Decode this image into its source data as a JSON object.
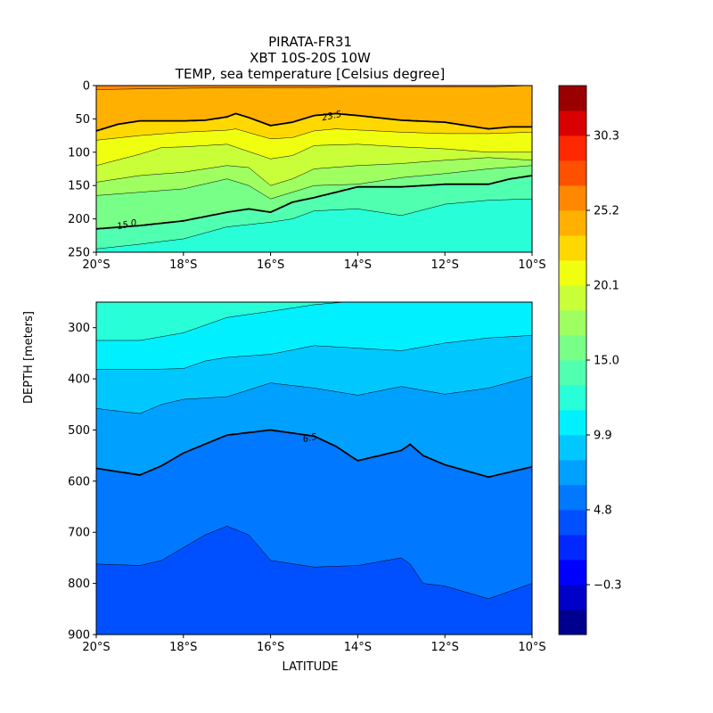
{
  "chart_data": {
    "type": "heatmap",
    "title_lines": [
      "PIRATA-FR31",
      "XBT 10S-20S 10W",
      "TEMP, sea temperature [Celsius degree]"
    ],
    "xlabel": "LATITUDE",
    "ylabel": "DEPTH [meters]",
    "x_range": [
      -20,
      -10
    ],
    "x_ticks": [
      -20,
      -18,
      -16,
      -14,
      -12,
      -10
    ],
    "x_tick_labels": [
      "20°S",
      "18°S",
      "16°S",
      "14°S",
      "12°S",
      "10°S"
    ],
    "panels": [
      {
        "name": "upper",
        "y_range": [
          0,
          250
        ],
        "y_ticks": [
          0,
          50,
          100,
          150,
          200,
          250
        ],
        "y_tick_labels": [
          "0",
          "50",
          "100",
          "150",
          "200",
          "250"
        ]
      },
      {
        "name": "lower",
        "y_range": [
          250,
          900
        ],
        "y_ticks": [
          300,
          400,
          500,
          600,
          700,
          800,
          900
        ],
        "y_tick_labels": [
          "300",
          "400",
          "500",
          "600",
          "700",
          "800",
          "900"
        ]
      }
    ],
    "colorbar": {
      "vmin": -2.0,
      "vmax": 32.0,
      "levels": 20,
      "colors": [
        "#00008f",
        "#0000c8",
        "#0000ff",
        "#0028ff",
        "#0050ff",
        "#0078ff",
        "#00a0ff",
        "#00c8ff",
        "#00f0ff",
        "#28ffd8",
        "#50ffb0",
        "#78ff88",
        "#a0ff60",
        "#c8ff38",
        "#f0ff10",
        "#ffd800",
        "#ffb000",
        "#ff8800",
        "#ff5000",
        "#ff2800",
        "#d80000",
        "#9a0000"
      ],
      "tick_values": [
        -0.3,
        4.8,
        9.9,
        15.0,
        20.1,
        25.2,
        30.3
      ],
      "tick_labels": [
        "−0.3",
        "4.8",
        "9.9",
        "15.0",
        "20.1",
        "25.2",
        "30.3"
      ]
    },
    "contour_labels": [
      {
        "text": "23.5",
        "lat": -14.6,
        "depth": 45
      },
      {
        "text": "15.0",
        "lat": -19.3,
        "depth": 208
      },
      {
        "text": "6.5",
        "lat": -15.1,
        "depth": 515
      }
    ],
    "isotherms": [
      {
        "temp": 25.2,
        "bold": false,
        "points": [
          [
            -20,
            6
          ],
          [
            -19,
            5
          ],
          [
            -18,
            4
          ],
          [
            -16,
            3
          ],
          [
            -15,
            3
          ],
          [
            -14,
            2
          ],
          [
            -12,
            2
          ],
          [
            -11,
            2
          ],
          [
            -10,
            0
          ]
        ]
      },
      {
        "temp": 23.5,
        "bold": true,
        "points": [
          [
            -20,
            68
          ],
          [
            -19.5,
            58
          ],
          [
            -19,
            53
          ],
          [
            -18,
            53
          ],
          [
            -17.5,
            52
          ],
          [
            -17,
            47
          ],
          [
            -16.8,
            42
          ],
          [
            -16.5,
            48
          ],
          [
            -16,
            60
          ],
          [
            -15.5,
            55
          ],
          [
            -15,
            45
          ],
          [
            -14.5,
            42
          ],
          [
            -14,
            45
          ],
          [
            -13,
            52
          ],
          [
            -12,
            55
          ],
          [
            -11,
            65
          ],
          [
            -10.5,
            62
          ],
          [
            -10,
            62
          ]
        ]
      },
      {
        "temp": 21.8,
        "bold": false,
        "points": [
          [
            -20,
            82
          ],
          [
            -19,
            75
          ],
          [
            -18,
            70
          ],
          [
            -17,
            67
          ],
          [
            -16.8,
            65
          ],
          [
            -16,
            80
          ],
          [
            -15.5,
            78
          ],
          [
            -15,
            68
          ],
          [
            -14.5,
            65
          ],
          [
            -13,
            70
          ],
          [
            -12,
            72
          ],
          [
            -11,
            72
          ],
          [
            -10,
            70
          ]
        ]
      },
      {
        "temp": 20.1,
        "bold": false,
        "points": [
          [
            -20,
            120
          ],
          [
            -19,
            103
          ],
          [
            -18.5,
            93
          ],
          [
            -18,
            92
          ],
          [
            -17,
            88
          ],
          [
            -16,
            110
          ],
          [
            -15.5,
            105
          ],
          [
            -15,
            90
          ],
          [
            -14,
            88
          ],
          [
            -13,
            92
          ],
          [
            -12,
            95
          ],
          [
            -11,
            100
          ],
          [
            -10,
            100
          ]
        ]
      },
      {
        "temp": 18.4,
        "bold": false,
        "points": [
          [
            -20,
            145
          ],
          [
            -19,
            135
          ],
          [
            -18,
            130
          ],
          [
            -17,
            120
          ],
          [
            -16.5,
            123
          ],
          [
            -16,
            150
          ],
          [
            -15.5,
            140
          ],
          [
            -15,
            125
          ],
          [
            -14,
            120
          ],
          [
            -13,
            117
          ],
          [
            -12,
            112
          ],
          [
            -11,
            108
          ],
          [
            -10,
            112
          ]
        ]
      },
      {
        "temp": 16.7,
        "bold": false,
        "points": [
          [
            -20,
            165
          ],
          [
            -19,
            160
          ],
          [
            -18,
            155
          ],
          [
            -17,
            140
          ],
          [
            -16.5,
            150
          ],
          [
            -16,
            170
          ],
          [
            -15.5,
            160
          ],
          [
            -15,
            150
          ],
          [
            -14,
            148
          ],
          [
            -13,
            138
          ],
          [
            -12,
            132
          ],
          [
            -11,
            125
          ],
          [
            -10,
            120
          ]
        ]
      },
      {
        "temp": 15.0,
        "bold": true,
        "points": [
          [
            -20,
            215
          ],
          [
            -19,
            210
          ],
          [
            -18,
            203
          ],
          [
            -17,
            190
          ],
          [
            -16.5,
            185
          ],
          [
            -16,
            190
          ],
          [
            -15.5,
            175
          ],
          [
            -15,
            168
          ],
          [
            -14,
            152
          ],
          [
            -13,
            152
          ],
          [
            -12,
            148
          ],
          [
            -11,
            148
          ],
          [
            -10.5,
            140
          ],
          [
            -10,
            135
          ]
        ]
      },
      {
        "temp": 13.3,
        "bold": false,
        "points": [
          [
            -20,
            245
          ],
          [
            -19,
            238
          ],
          [
            -18,
            230
          ],
          [
            -17,
            212
          ],
          [
            -16,
            205
          ],
          [
            -15.5,
            200
          ],
          [
            -15,
            188
          ],
          [
            -14,
            185
          ],
          [
            -13,
            195
          ],
          [
            -12,
            178
          ],
          [
            -11,
            172
          ],
          [
            -10,
            170
          ]
        ]
      },
      {
        "temp": 11.6,
        "bold": false,
        "points": [
          [
            -20,
            325
          ],
          [
            -19,
            325
          ],
          [
            -18,
            310
          ],
          [
            -17,
            280
          ],
          [
            -16,
            268
          ],
          [
            -15,
            255
          ],
          [
            -14.3,
            250
          ]
        ]
      },
      {
        "temp": 10.0,
        "bold": false,
        "points": [
          [
            -20,
            382
          ],
          [
            -19,
            382
          ],
          [
            -18,
            380
          ],
          [
            -17.5,
            365
          ],
          [
            -17,
            358
          ],
          [
            -16,
            352
          ],
          [
            -15,
            335
          ],
          [
            -14,
            340
          ],
          [
            -13,
            345
          ],
          [
            -12,
            330
          ],
          [
            -11,
            320
          ],
          [
            -10,
            315
          ]
        ]
      },
      {
        "temp": 8.3,
        "bold": false,
        "points": [
          [
            -20,
            458
          ],
          [
            -19,
            468
          ],
          [
            -18.5,
            450
          ],
          [
            -18,
            440
          ],
          [
            -17,
            435
          ],
          [
            -16,
            408
          ],
          [
            -15,
            418
          ],
          [
            -14,
            432
          ],
          [
            -13,
            415
          ],
          [
            -12,
            430
          ],
          [
            -11,
            418
          ],
          [
            -10,
            395
          ]
        ]
      },
      {
        "temp": 6.5,
        "bold": true,
        "points": [
          [
            -20,
            575
          ],
          [
            -19,
            588
          ],
          [
            -18.5,
            570
          ],
          [
            -18,
            545
          ],
          [
            -17,
            510
          ],
          [
            -16,
            500
          ],
          [
            -15,
            512
          ],
          [
            -14.5,
            532
          ],
          [
            -14,
            560
          ],
          [
            -13,
            540
          ],
          [
            -12.8,
            528
          ],
          [
            -12.5,
            550
          ],
          [
            -12,
            568
          ],
          [
            -11,
            592
          ],
          [
            -10.5,
            582
          ],
          [
            -10,
            572
          ]
        ]
      },
      {
        "temp": 4.8,
        "bold": false,
        "points": [
          [
            -20,
            762
          ],
          [
            -19,
            765
          ],
          [
            -18.5,
            755
          ],
          [
            -18,
            730
          ],
          [
            -17.5,
            705
          ],
          [
            -17,
            688
          ],
          [
            -16.5,
            705
          ],
          [
            -16,
            755
          ],
          [
            -15,
            768
          ],
          [
            -14,
            765
          ],
          [
            -13,
            750
          ],
          [
            -12.8,
            762
          ],
          [
            -12.5,
            800
          ],
          [
            -12,
            805
          ],
          [
            -11,
            830
          ],
          [
            -10.5,
            815
          ],
          [
            -10,
            800
          ]
        ]
      }
    ]
  }
}
